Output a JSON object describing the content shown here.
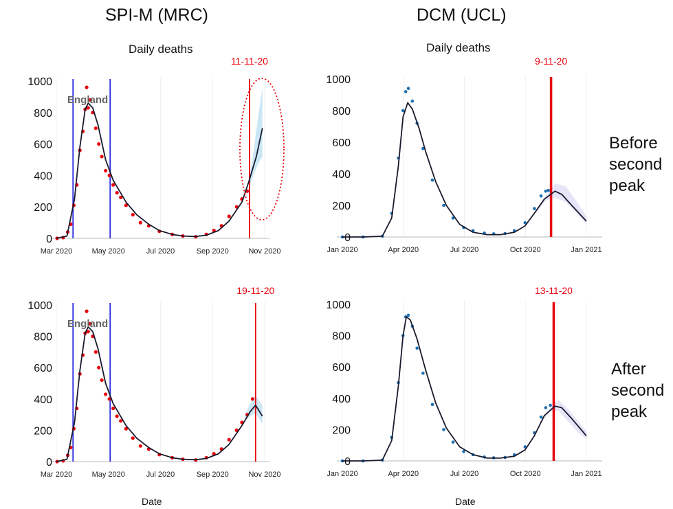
{
  "headers": {
    "left": "SPI-M (MRC)",
    "right": "DCM (UCL)",
    "subtitle_left": "Daily deaths",
    "subtitle_right": "Daily deaths",
    "xlabel_left": "Date",
    "xlabel_right": "Date",
    "row_top": [
      "Before",
      "second",
      "peak"
    ],
    "row_bottom": [
      "After",
      "second",
      "peak"
    ]
  },
  "colors": {
    "observed_red": "#e8000b",
    "observed_blue": "#1f6fb0",
    "model_line": "#1a1a2e",
    "band_light_blue": "#b9dff0",
    "band_lavender": "#dedcf5",
    "lockdown_lines": "#2a2ae0",
    "forecast_date_line": "#e8000b"
  },
  "chart_data": [
    {
      "type": "line",
      "panel": "spim-before",
      "title": "Daily deaths",
      "region_label": "England",
      "date_label": "11-11-20",
      "xlabel": "",
      "ylabel": "",
      "x_ticks": [
        "Mar 2020",
        "May 2020",
        "Jul 2020",
        "Sep 2020",
        "Nov 2020"
      ],
      "x_domain": [
        "2020-03-01",
        "2020-12-01"
      ],
      "ylim": [
        0,
        1000
      ],
      "y_ticks": [
        0,
        200,
        400,
        600,
        800,
        1000
      ],
      "vertical_lines": [
        {
          "date": "2020-03-23",
          "color": "blue"
        },
        {
          "date": "2020-05-11",
          "color": "blue"
        },
        {
          "date": "2020-11-11",
          "color": "red"
        }
      ],
      "forecast_highlight": "dotted red ellipse around projection",
      "series": [
        {
          "style": "dots",
          "color": "red",
          "x": [
            "2020-03-02",
            "2020-03-10",
            "2020-03-16",
            "2020-03-20",
            "2020-03-24",
            "2020-03-28",
            "2020-04-01",
            "2020-04-05",
            "2020-04-08",
            "2020-04-10",
            "2020-04-12",
            "2020-04-15",
            "2020-04-18",
            "2020-04-22",
            "2020-04-26",
            "2020-04-30",
            "2020-05-05",
            "2020-05-10",
            "2020-05-15",
            "2020-05-20",
            "2020-05-25",
            "2020-06-01",
            "2020-06-10",
            "2020-06-20",
            "2020-07-01",
            "2020-07-15",
            "2020-08-01",
            "2020-08-15",
            "2020-09-01",
            "2020-09-15",
            "2020-09-25",
            "2020-10-05",
            "2020-10-15",
            "2020-10-25",
            "2020-11-01",
            "2020-11-08"
          ],
          "y": [
            0,
            5,
            40,
            90,
            210,
            340,
            560,
            680,
            820,
            960,
            830,
            880,
            800,
            700,
            600,
            520,
            430,
            400,
            340,
            290,
            260,
            210,
            150,
            100,
            80,
            45,
            25,
            15,
            10,
            25,
            50,
            80,
            140,
            200,
            250,
            300
          ]
        },
        {
          "style": "line",
          "color": "black",
          "name": "",
          "x": [
            "2020-03-01",
            "2020-03-15",
            "2020-03-25",
            "2020-04-01",
            "2020-04-08",
            "2020-04-12",
            "2020-04-18",
            "2020-04-25",
            "2020-05-05",
            "2020-05-15",
            "2020-06-01",
            "2020-06-15",
            "2020-07-01",
            "2020-07-15",
            "2020-08-01",
            "2020-08-15",
            "2020-09-01",
            "2020-09-15",
            "2020-10-01",
            "2020-10-15",
            "2020-11-01",
            "2020-11-10",
            "2020-11-20",
            "2020-11-28"
          ],
          "y": [
            0,
            15,
            250,
            580,
            820,
            860,
            830,
            720,
            500,
            370,
            230,
            150,
            90,
            50,
            25,
            15,
            12,
            20,
            50,
            110,
            230,
            360,
            520,
            700
          ]
        },
        {
          "style": "band",
          "color": "lightblue",
          "x": [
            "2020-11-11",
            "2020-11-16",
            "2020-11-22",
            "2020-11-28"
          ],
          "upper": [
            380,
            540,
            760,
            960
          ],
          "lower": [
            330,
            400,
            470,
            520
          ]
        }
      ]
    },
    {
      "type": "line",
      "panel": "dcm-before",
      "title": "Daily deaths",
      "date_label": "9-11-20",
      "xlabel": "",
      "ylabel": "",
      "x_ticks": [
        "Jan 2020",
        "Apr 2020",
        "Jul 2020",
        "Oct 2020",
        "Jan 2021"
      ],
      "x_domain": [
        "2020-01-01",
        "2021-01-01"
      ],
      "ylim": [
        0,
        1000
      ],
      "y_ticks": [
        0,
        200,
        400,
        600,
        800,
        1000
      ],
      "vertical_lines": [
        {
          "date": "2020-11-09",
          "color": "red"
        }
      ],
      "series": [
        {
          "style": "dots",
          "color": "blue",
          "x": [
            "2020-01-01",
            "2020-02-01",
            "2020-03-01",
            "2020-03-15",
            "2020-03-25",
            "2020-04-01",
            "2020-04-05",
            "2020-04-09",
            "2020-04-15",
            "2020-04-22",
            "2020-05-01",
            "2020-05-15",
            "2020-06-01",
            "2020-06-15",
            "2020-07-01",
            "2020-07-15",
            "2020-08-01",
            "2020-08-15",
            "2020-09-01",
            "2020-09-15",
            "2020-10-01",
            "2020-10-15",
            "2020-10-25",
            "2020-11-01",
            "2020-11-05"
          ],
          "y": [
            0,
            0,
            5,
            150,
            500,
            800,
            920,
            940,
            860,
            720,
            560,
            360,
            200,
            120,
            60,
            40,
            25,
            20,
            22,
            40,
            90,
            180,
            260,
            290,
            295
          ]
        },
        {
          "style": "line",
          "color": "black",
          "name": "",
          "x": [
            "2020-01-01",
            "2020-02-01",
            "2020-03-01",
            "2020-03-15",
            "2020-03-25",
            "2020-04-01",
            "2020-04-08",
            "2020-04-15",
            "2020-04-25",
            "2020-05-05",
            "2020-05-20",
            "2020-06-05",
            "2020-06-25",
            "2020-07-15",
            "2020-08-05",
            "2020-08-25",
            "2020-09-15",
            "2020-10-01",
            "2020-10-15",
            "2020-10-30",
            "2020-11-15",
            "2020-11-25",
            "2020-12-10",
            "2021-01-01"
          ],
          "y": [
            0,
            0,
            5,
            120,
            450,
            760,
            850,
            810,
            690,
            540,
            350,
            200,
            80,
            30,
            15,
            15,
            30,
            70,
            150,
            240,
            290,
            270,
            200,
            100
          ]
        },
        {
          "style": "band",
          "color": "lavender",
          "x": [
            "2020-10-15",
            "2020-11-01",
            "2020-11-15",
            "2020-12-01",
            "2020-12-15",
            "2021-01-01"
          ],
          "upper": [
            160,
            260,
            340,
            320,
            240,
            130
          ],
          "lower": [
            140,
            230,
            250,
            220,
            160,
            80
          ]
        }
      ]
    },
    {
      "type": "line",
      "panel": "spim-after",
      "region_label": "England",
      "date_label": "19-11-20",
      "xlabel": "Date",
      "ylabel": "",
      "x_ticks": [
        "Mar 2020",
        "May 2020",
        "Jul 2020",
        "Sep 2020",
        "Nov 2020"
      ],
      "x_domain": [
        "2020-03-01",
        "2020-12-01"
      ],
      "ylim": [
        0,
        1000
      ],
      "y_ticks": [
        0,
        200,
        400,
        600,
        800,
        1000
      ],
      "vertical_lines": [
        {
          "date": "2020-03-23",
          "color": "blue"
        },
        {
          "date": "2020-05-11",
          "color": "blue"
        },
        {
          "date": "2020-11-19",
          "color": "red"
        }
      ],
      "series": [
        {
          "style": "dots",
          "color": "red",
          "x": [
            "2020-03-02",
            "2020-03-10",
            "2020-03-16",
            "2020-03-20",
            "2020-03-24",
            "2020-03-28",
            "2020-04-01",
            "2020-04-05",
            "2020-04-08",
            "2020-04-10",
            "2020-04-12",
            "2020-04-15",
            "2020-04-18",
            "2020-04-22",
            "2020-04-26",
            "2020-04-30",
            "2020-05-05",
            "2020-05-10",
            "2020-05-15",
            "2020-05-20",
            "2020-05-25",
            "2020-06-01",
            "2020-06-10",
            "2020-06-20",
            "2020-07-01",
            "2020-07-15",
            "2020-08-01",
            "2020-08-15",
            "2020-09-01",
            "2020-09-15",
            "2020-09-25",
            "2020-10-05",
            "2020-10-15",
            "2020-10-25",
            "2020-11-01",
            "2020-11-08",
            "2020-11-15"
          ],
          "y": [
            0,
            5,
            40,
            90,
            210,
            340,
            560,
            680,
            820,
            960,
            830,
            880,
            800,
            700,
            600,
            520,
            430,
            400,
            340,
            290,
            260,
            210,
            150,
            100,
            80,
            45,
            25,
            15,
            10,
            25,
            50,
            80,
            140,
            200,
            250,
            300,
            400
          ]
        },
        {
          "style": "line",
          "color": "black",
          "name": "",
          "x": [
            "2020-03-01",
            "2020-03-15",
            "2020-03-25",
            "2020-04-01",
            "2020-04-08",
            "2020-04-12",
            "2020-04-18",
            "2020-04-25",
            "2020-05-05",
            "2020-05-15",
            "2020-06-01",
            "2020-06-15",
            "2020-07-01",
            "2020-07-15",
            "2020-08-01",
            "2020-08-15",
            "2020-09-01",
            "2020-09-15",
            "2020-10-01",
            "2020-10-15",
            "2020-11-01",
            "2020-11-12",
            "2020-11-19",
            "2020-11-28"
          ],
          "y": [
            0,
            15,
            250,
            580,
            820,
            860,
            830,
            720,
            500,
            370,
            230,
            150,
            90,
            50,
            25,
            15,
            12,
            20,
            50,
            110,
            230,
            320,
            360,
            290
          ]
        },
        {
          "style": "band",
          "color": "lightblue",
          "x": [
            "2020-11-05",
            "2020-11-12",
            "2020-11-19",
            "2020-11-28"
          ],
          "upper": [
            300,
            370,
            420,
            360
          ],
          "lower": [
            260,
            290,
            310,
            240
          ]
        }
      ]
    },
    {
      "type": "line",
      "panel": "dcm-after",
      "date_label": "13-11-20",
      "xlabel": "Date",
      "ylabel": "",
      "x_ticks": [
        "Jan 2020",
        "Apr 2020",
        "Jul 2020",
        "Oct 2020",
        "Jan 2021"
      ],
      "x_domain": [
        "2020-01-01",
        "2021-01-01"
      ],
      "ylim": [
        0,
        1000
      ],
      "y_ticks": [
        0,
        200,
        400,
        600,
        800,
        1000
      ],
      "vertical_lines": [
        {
          "date": "2020-11-13",
          "color": "red"
        }
      ],
      "series": [
        {
          "style": "dots",
          "color": "blue",
          "x": [
            "2020-01-01",
            "2020-02-01",
            "2020-03-01",
            "2020-03-15",
            "2020-03-25",
            "2020-04-01",
            "2020-04-05",
            "2020-04-09",
            "2020-04-15",
            "2020-04-22",
            "2020-05-01",
            "2020-05-15",
            "2020-06-01",
            "2020-06-15",
            "2020-07-01",
            "2020-07-15",
            "2020-08-01",
            "2020-08-15",
            "2020-09-01",
            "2020-09-15",
            "2020-10-01",
            "2020-10-15",
            "2020-10-25",
            "2020-11-01",
            "2020-11-08"
          ],
          "y": [
            0,
            0,
            5,
            150,
            500,
            800,
            920,
            930,
            860,
            720,
            560,
            360,
            200,
            120,
            60,
            40,
            25,
            20,
            22,
            40,
            90,
            180,
            280,
            340,
            355
          ]
        },
        {
          "style": "line",
          "color": "black",
          "name": "",
          "x": [
            "2020-01-01",
            "2020-02-01",
            "2020-03-01",
            "2020-03-15",
            "2020-03-25",
            "2020-04-01",
            "2020-04-06",
            "2020-04-12",
            "2020-04-22",
            "2020-05-05",
            "2020-05-20",
            "2020-06-05",
            "2020-06-25",
            "2020-07-15",
            "2020-08-05",
            "2020-08-25",
            "2020-09-15",
            "2020-10-01",
            "2020-10-15",
            "2020-10-30",
            "2020-11-15",
            "2020-11-25",
            "2020-12-10",
            "2021-01-01"
          ],
          "y": [
            0,
            0,
            5,
            130,
            480,
            800,
            920,
            900,
            780,
            580,
            370,
            210,
            90,
            40,
            18,
            18,
            30,
            70,
            160,
            290,
            350,
            340,
            270,
            160
          ]
        },
        {
          "style": "band",
          "color": "lavender",
          "x": [
            "2020-10-25",
            "2020-11-08",
            "2020-11-20",
            "2020-12-05",
            "2020-12-20",
            "2021-01-01"
          ],
          "upper": [
            260,
            340,
            390,
            330,
            250,
            190
          ],
          "lower": [
            240,
            320,
            320,
            250,
            180,
            140
          ]
        }
      ]
    }
  ]
}
